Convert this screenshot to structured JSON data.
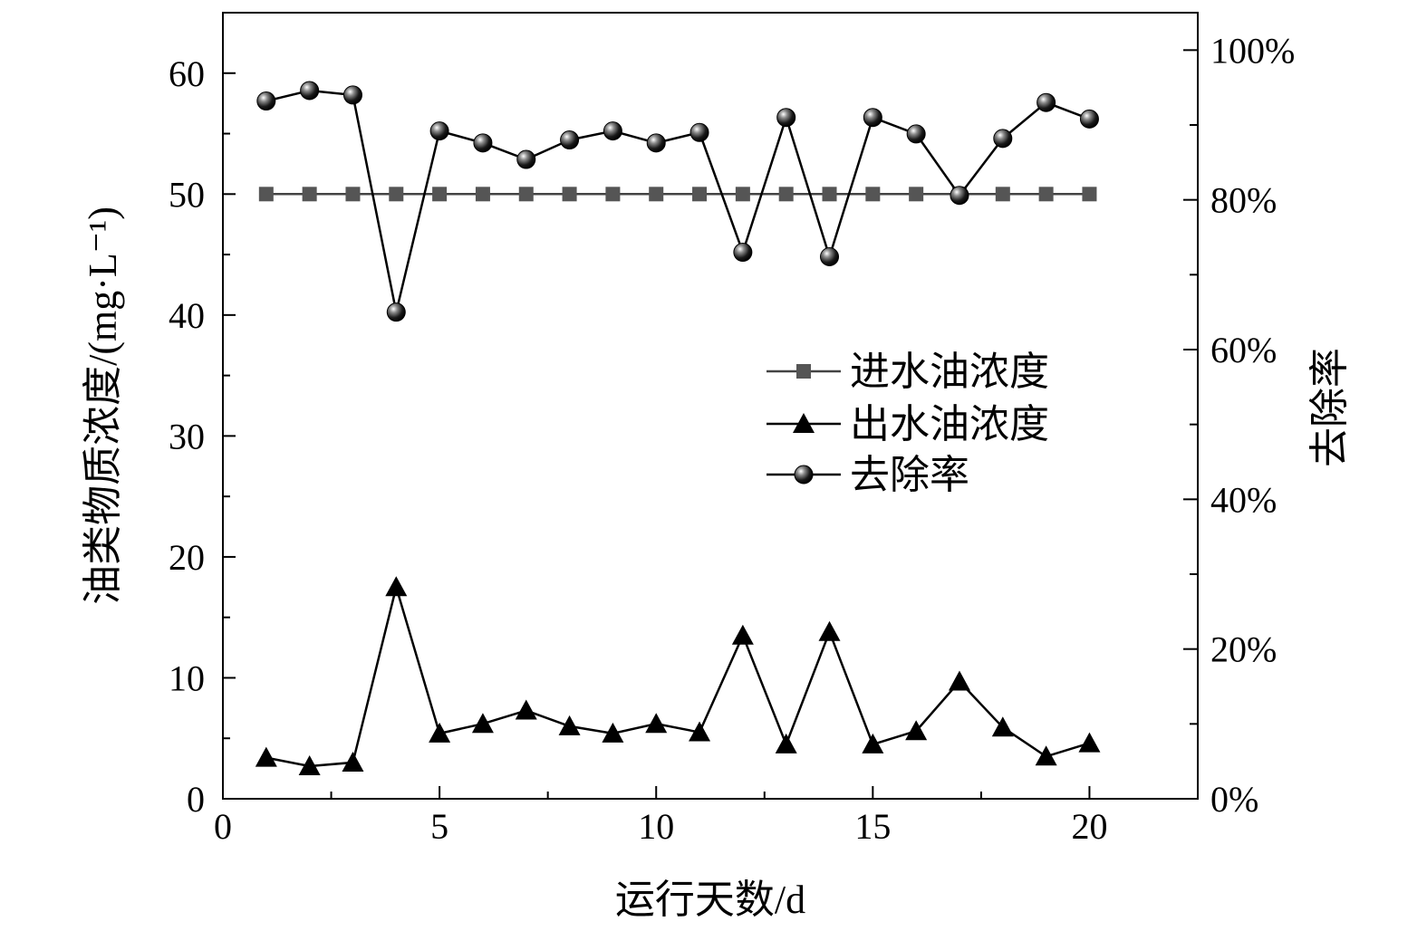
{
  "chart_data": {
    "type": "line",
    "title": "",
    "xlabel": "运行天数/d",
    "ylabel": "油类物质浓度/(mg·L⁻¹)",
    "y2label": "去除率",
    "xlim": [
      0,
      22.5
    ],
    "ylim": [
      0,
      65
    ],
    "y2lim": [
      0,
      1.05
    ],
    "x_ticks": [
      0,
      5,
      10,
      15,
      20
    ],
    "x_tick_labels": [
      "0",
      "5",
      "10",
      "15",
      "20"
    ],
    "y_ticks": [
      0,
      10,
      20,
      30,
      40,
      50,
      60
    ],
    "y_tick_labels": [
      "0",
      "10",
      "20",
      "30",
      "40",
      "50",
      "60"
    ],
    "y2_ticks": [
      0,
      0.2,
      0.4,
      0.6,
      0.8,
      1.0
    ],
    "y2_tick_labels": [
      "0%",
      "20%",
      "40%",
      "60%",
      "80%",
      "100%"
    ],
    "grid": false,
    "legend_position": "right-middle",
    "x": [
      1,
      2,
      3,
      4,
      5,
      6,
      7,
      8,
      9,
      10,
      11,
      12,
      13,
      14,
      15,
      16,
      17,
      18,
      19,
      20
    ],
    "series": [
      {
        "name": "进水油浓度",
        "axis": "left",
        "marker": "square",
        "color": "#555555",
        "values": [
          50,
          50,
          50,
          50,
          50,
          50,
          50,
          50,
          50,
          50,
          50,
          50,
          50,
          50,
          50,
          50,
          50,
          50,
          50,
          50
        ]
      },
      {
        "name": "出水油浓度",
        "axis": "left",
        "marker": "triangle",
        "color": "#000000",
        "values": [
          3.4,
          2.7,
          3.0,
          17.5,
          5.4,
          6.2,
          7.3,
          6.0,
          5.4,
          6.2,
          5.5,
          13.5,
          4.5,
          13.8,
          4.5,
          5.6,
          9.7,
          5.9,
          3.5,
          4.6
        ]
      },
      {
        "name": "去除率",
        "axis": "right",
        "marker": "circle",
        "color": "#000000",
        "values": [
          0.932,
          0.946,
          0.94,
          0.65,
          0.892,
          0.876,
          0.854,
          0.88,
          0.892,
          0.876,
          0.89,
          0.73,
          0.91,
          0.724,
          0.91,
          0.888,
          0.806,
          0.882,
          0.93,
          0.908
        ]
      }
    ]
  }
}
